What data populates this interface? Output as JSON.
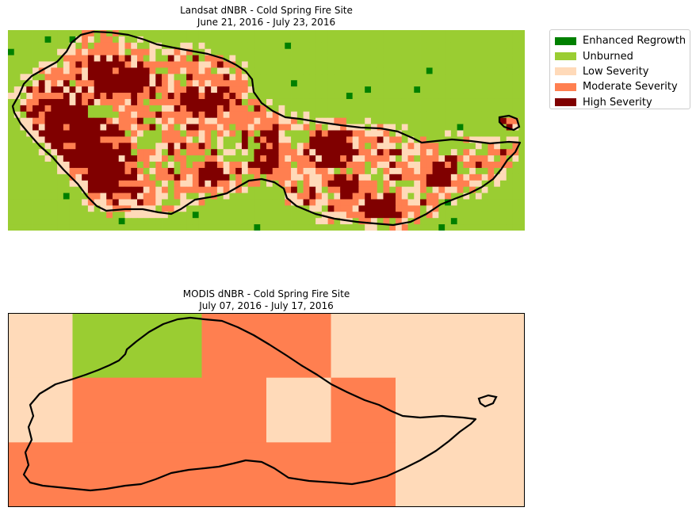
{
  "colors": {
    "enhanced_regrowth": "#008000",
    "unburned": "#9acd32",
    "low_severity": "#ffdab9",
    "moderate_severity": "#ff7f50",
    "high_severity": "#800000",
    "outline": "#000000"
  },
  "legend": {
    "placement": "top-right, outside plot",
    "items": [
      {
        "label": "Enhanced Regrowth",
        "color": "#008000"
      },
      {
        "label": "Unburned",
        "color": "#9acd32"
      },
      {
        "label": "Low Severity",
        "color": "#ffdab9"
      },
      {
        "label": "Moderate Severity",
        "color": "#ff7f50"
      },
      {
        "label": "High Severity",
        "color": "#800000"
      }
    ]
  },
  "chart_data": [
    {
      "type": "heatmap",
      "title": "Landsat dNBR - Cold Spring Fire Site",
      "subtitle": "June 21, 2016 - July 23, 2016",
      "xlabel": "",
      "ylabel": "",
      "axes_visible": false,
      "grid_resolution": [
        84,
        32
      ],
      "classes": [
        "Enhanced Regrowth",
        "Unburned",
        "Low Severity",
        "Moderate Severity",
        "High Severity"
      ],
      "class_codes": {
        "0": "Enhanced Regrowth",
        "1": "Unburned",
        "2": "Low Severity",
        "3": "Moderate Severity",
        "4": "High Severity"
      },
      "approx_class_share": {
        "Enhanced Regrowth": 0.01,
        "Unburned": 0.55,
        "Low Severity": 0.09,
        "Moderate Severity": 0.22,
        "High Severity": 0.13
      },
      "zones": [
        {
          "class": "High Severity",
          "location": "west lobe, main body"
        },
        {
          "class": "High Severity",
          "location": "north-central block"
        },
        {
          "class": "High Severity",
          "location": "east lobe clusters"
        },
        {
          "class": "Moderate Severity",
          "location": "ring around high-severity cores"
        },
        {
          "class": "Enhanced Regrowth",
          "location": "scattered pixels outside perimeter"
        }
      ],
      "overlay": "fire perimeter outline"
    },
    {
      "type": "heatmap",
      "title": "MODIS dNBR - Cold Spring Fire Site",
      "subtitle": "July 07, 2016 - July 17, 2016",
      "xlabel": "",
      "ylabel": "",
      "axes_visible": false,
      "grid_resolution": [
        8,
        3
      ],
      "class_codes": {
        "1": "Unburned",
        "2": "Low Severity",
        "3": "Moderate Severity"
      },
      "grid": [
        [
          2,
          1,
          1,
          3,
          3,
          2,
          2,
          2
        ],
        [
          2,
          3,
          3,
          3,
          2,
          3,
          2,
          2
        ],
        [
          3,
          3,
          3,
          3,
          3,
          3,
          2,
          2
        ]
      ],
      "overlay": "fire perimeter outline"
    }
  ]
}
